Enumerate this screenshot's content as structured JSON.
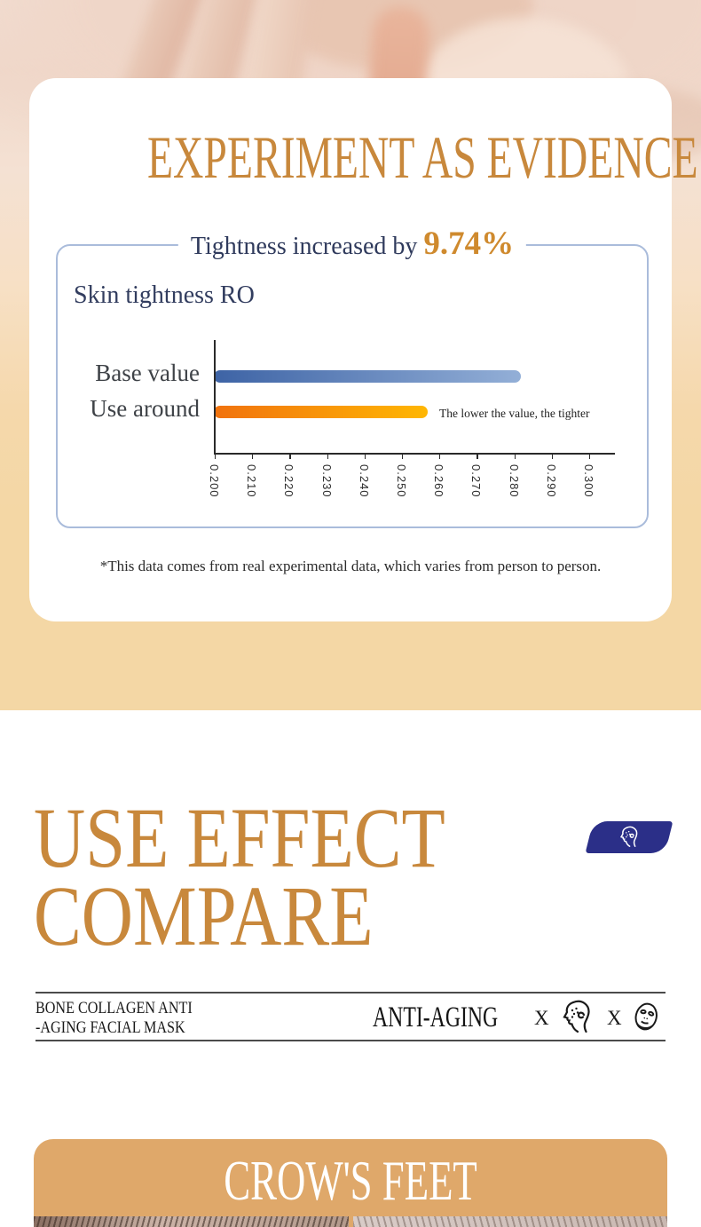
{
  "hero": {
    "title": "EXPERIMENT AS EVIDENCE",
    "footnote": "*This data comes from real experimental data, which varies from person to person."
  },
  "chart_data": {
    "type": "bar",
    "orientation": "horizontal",
    "title_prefix": "Tightness increased by ",
    "title_value": "9.74%",
    "subtitle": "Skin tightness RO",
    "categories": [
      "Base value",
      "Use around"
    ],
    "values": [
      0.282,
      0.257
    ],
    "xlim": [
      0.2,
      0.3
    ],
    "x_ticks": [
      "0.200",
      "0.210",
      "0.220",
      "0.230",
      "0.240",
      "0.250",
      "0.260",
      "0.270",
      "0.280",
      "0.290",
      "0.300"
    ],
    "annotation": "The lower the value, the tighter",
    "bar_colors": [
      [
        "#3d63a5",
        "#93afd7"
      ],
      [
        "#f1720e",
        "#ffb703"
      ]
    ],
    "grid": false,
    "legend_position": "none"
  },
  "compare": {
    "title_line1": "USE EFFECT",
    "title_line2": "COMPARE",
    "badge_icon": "face-profile-icon",
    "product_line1": "BONE COLLAGEN ANTI",
    "product_line2": "-AGING FACIAL MASK",
    "category": "ANTI-AGING",
    "x1": "X",
    "x2": "X"
  },
  "panel": {
    "title": "CROW'S FEET"
  },
  "colors": {
    "gold": "#c8883c",
    "navy": "#2f3a5c",
    "pct_gold": "#cf8a2e",
    "chart_border": "#aabcdb",
    "badge_blue": "#2b2f88",
    "panel_tan": "#dfa86a",
    "band_peach": "#f4d7a5"
  }
}
